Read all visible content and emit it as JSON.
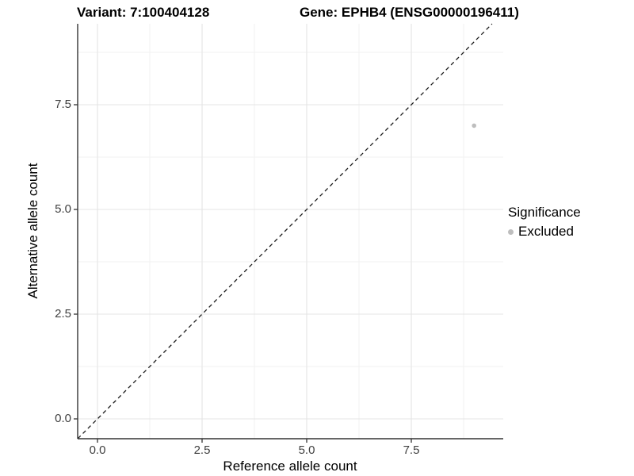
{
  "chart_data": {
    "type": "scatter",
    "title_left": "Variant: 7:100404128",
    "title_right": "Gene: EPHB4 (ENSG00000196411)",
    "xlabel": "Reference allele count",
    "ylabel": "Alternative allele count",
    "x_tick_labels": [
      "0.0",
      "2.5",
      "5.0",
      "7.5"
    ],
    "y_tick_labels": [
      "0.0",
      "2.5",
      "5.0",
      "7.5"
    ],
    "x_tick_values": [
      0,
      2.5,
      5,
      7.5
    ],
    "y_tick_values": [
      0,
      2.5,
      5,
      7.5
    ],
    "minor_tick_values": [
      1.25,
      3.75,
      6.25,
      8.75
    ],
    "xlim": [
      -0.47,
      9.7
    ],
    "ylim": [
      -0.47,
      9.43
    ],
    "grid": true,
    "reference_line": {
      "type": "identity",
      "style": "dashed",
      "color": "#1a1a1a"
    },
    "series": [
      {
        "name": "Excluded",
        "color": "#BEBEBE",
        "points": [
          {
            "x": 9,
            "y": 7
          }
        ]
      }
    ],
    "legend": {
      "title": "Significance",
      "position": "right",
      "entries": [
        {
          "label": "Excluded",
          "color": "#BEBEBE"
        }
      ]
    },
    "colors": {
      "background": "#ffffff",
      "axis_line": "#333333",
      "tick_text": "#404040",
      "grid_major": "#e4e4e4",
      "grid_minor": "#f2f2f2"
    }
  }
}
